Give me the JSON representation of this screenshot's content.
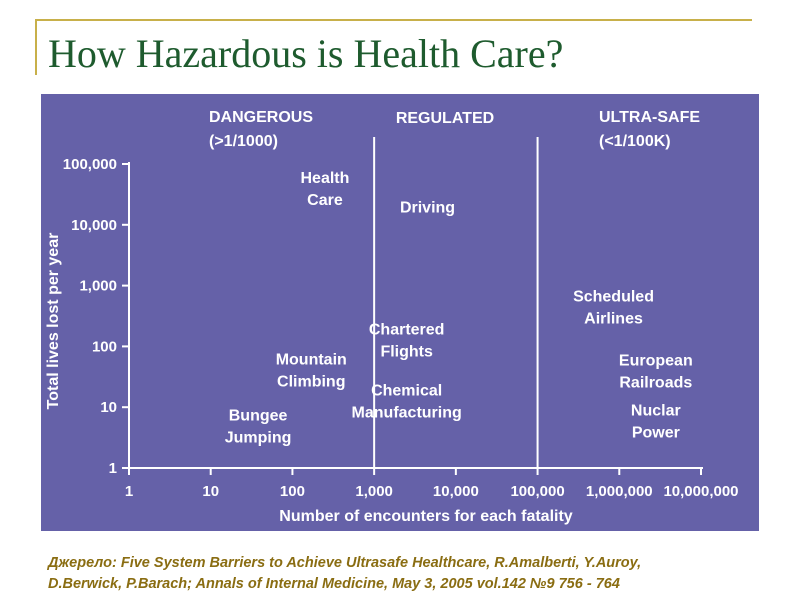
{
  "slide": {
    "title": "How Hazardous is Health Care?",
    "source_line1": "Джерело: Five System Barriers to Achieve Ultrasafe Healthcare, R.Amalberti, Y.Auroy,",
    "source_line2": "D.Berwick,  P.Barach; Annals of Internal Medicine, May 3, 2005 vol.142 №9 756 - 764"
  },
  "colors": {
    "panel_background": "#6561a8",
    "title_text": "#1e5b2e",
    "source_text": "#8a6d12",
    "frame_line": "#c8b04a",
    "chart_text": "#ffffff"
  },
  "chart_data": {
    "type": "scatter",
    "xlabel": "Number of encounters for each fatality",
    "ylabel": "Total lives lost per year",
    "x_scale": "log",
    "y_scale": "log",
    "xlim": [
      1,
      10000000
    ],
    "ylim": [
      1,
      100000
    ],
    "x_ticks": [
      {
        "value": 1,
        "label": "1"
      },
      {
        "value": 10,
        "label": "10"
      },
      {
        "value": 100,
        "label": "100"
      },
      {
        "value": 1000,
        "label": "1,000"
      },
      {
        "value": 10000,
        "label": "10,000"
      },
      {
        "value": 100000,
        "label": "100,000"
      },
      {
        "value": 1000000,
        "label": "1,000,000"
      },
      {
        "value": 10000000,
        "label": "10,000,000"
      }
    ],
    "y_ticks": [
      {
        "value": 1,
        "label": "1"
      },
      {
        "value": 10,
        "label": "10"
      },
      {
        "value": 100,
        "label": "100"
      },
      {
        "value": 1000,
        "label": "1,000"
      },
      {
        "value": 10000,
        "label": "10,000"
      },
      {
        "value": 100000,
        "label": "100,000"
      }
    ],
    "grid": false,
    "regions": [
      {
        "title": "DANGEROUS",
        "threshold": "(>1/1000)",
        "x_from": 1,
        "x_to": 1000
      },
      {
        "title": "REGULATED",
        "threshold": "",
        "x_from": 1000,
        "x_to": 100000
      },
      {
        "title": "ULTRA-SAFE",
        "threshold": "(<1/100K)",
        "x_from": 100000,
        "x_to": 10000000
      }
    ],
    "region_dividers": [
      1000,
      100000
    ],
    "points": [
      {
        "lines": [
          "Health",
          "Care"
        ],
        "x": 250,
        "y": 40000
      },
      {
        "lines": [
          "Driving"
        ],
        "x": 4500,
        "y": 20000
      },
      {
        "lines": [
          "Scheduled",
          "Airlines"
        ],
        "x": 850000,
        "y": 450
      },
      {
        "lines": [
          "Chartered",
          "Flights"
        ],
        "x": 2500,
        "y": 130
      },
      {
        "lines": [
          "Mountain",
          "Climbing"
        ],
        "x": 170,
        "y": 42
      },
      {
        "lines": [
          "European",
          "Railroads"
        ],
        "x": 2800000,
        "y": 40
      },
      {
        "lines": [
          "Chemical",
          "Manufacturing"
        ],
        "x": 2500,
        "y": 13
      },
      {
        "lines": [
          "Nuclar",
          "Power"
        ],
        "x": 2800000,
        "y": 6
      },
      {
        "lines": [
          "Bungee",
          "Jumping"
        ],
        "x": 38,
        "y": 5
      }
    ]
  }
}
